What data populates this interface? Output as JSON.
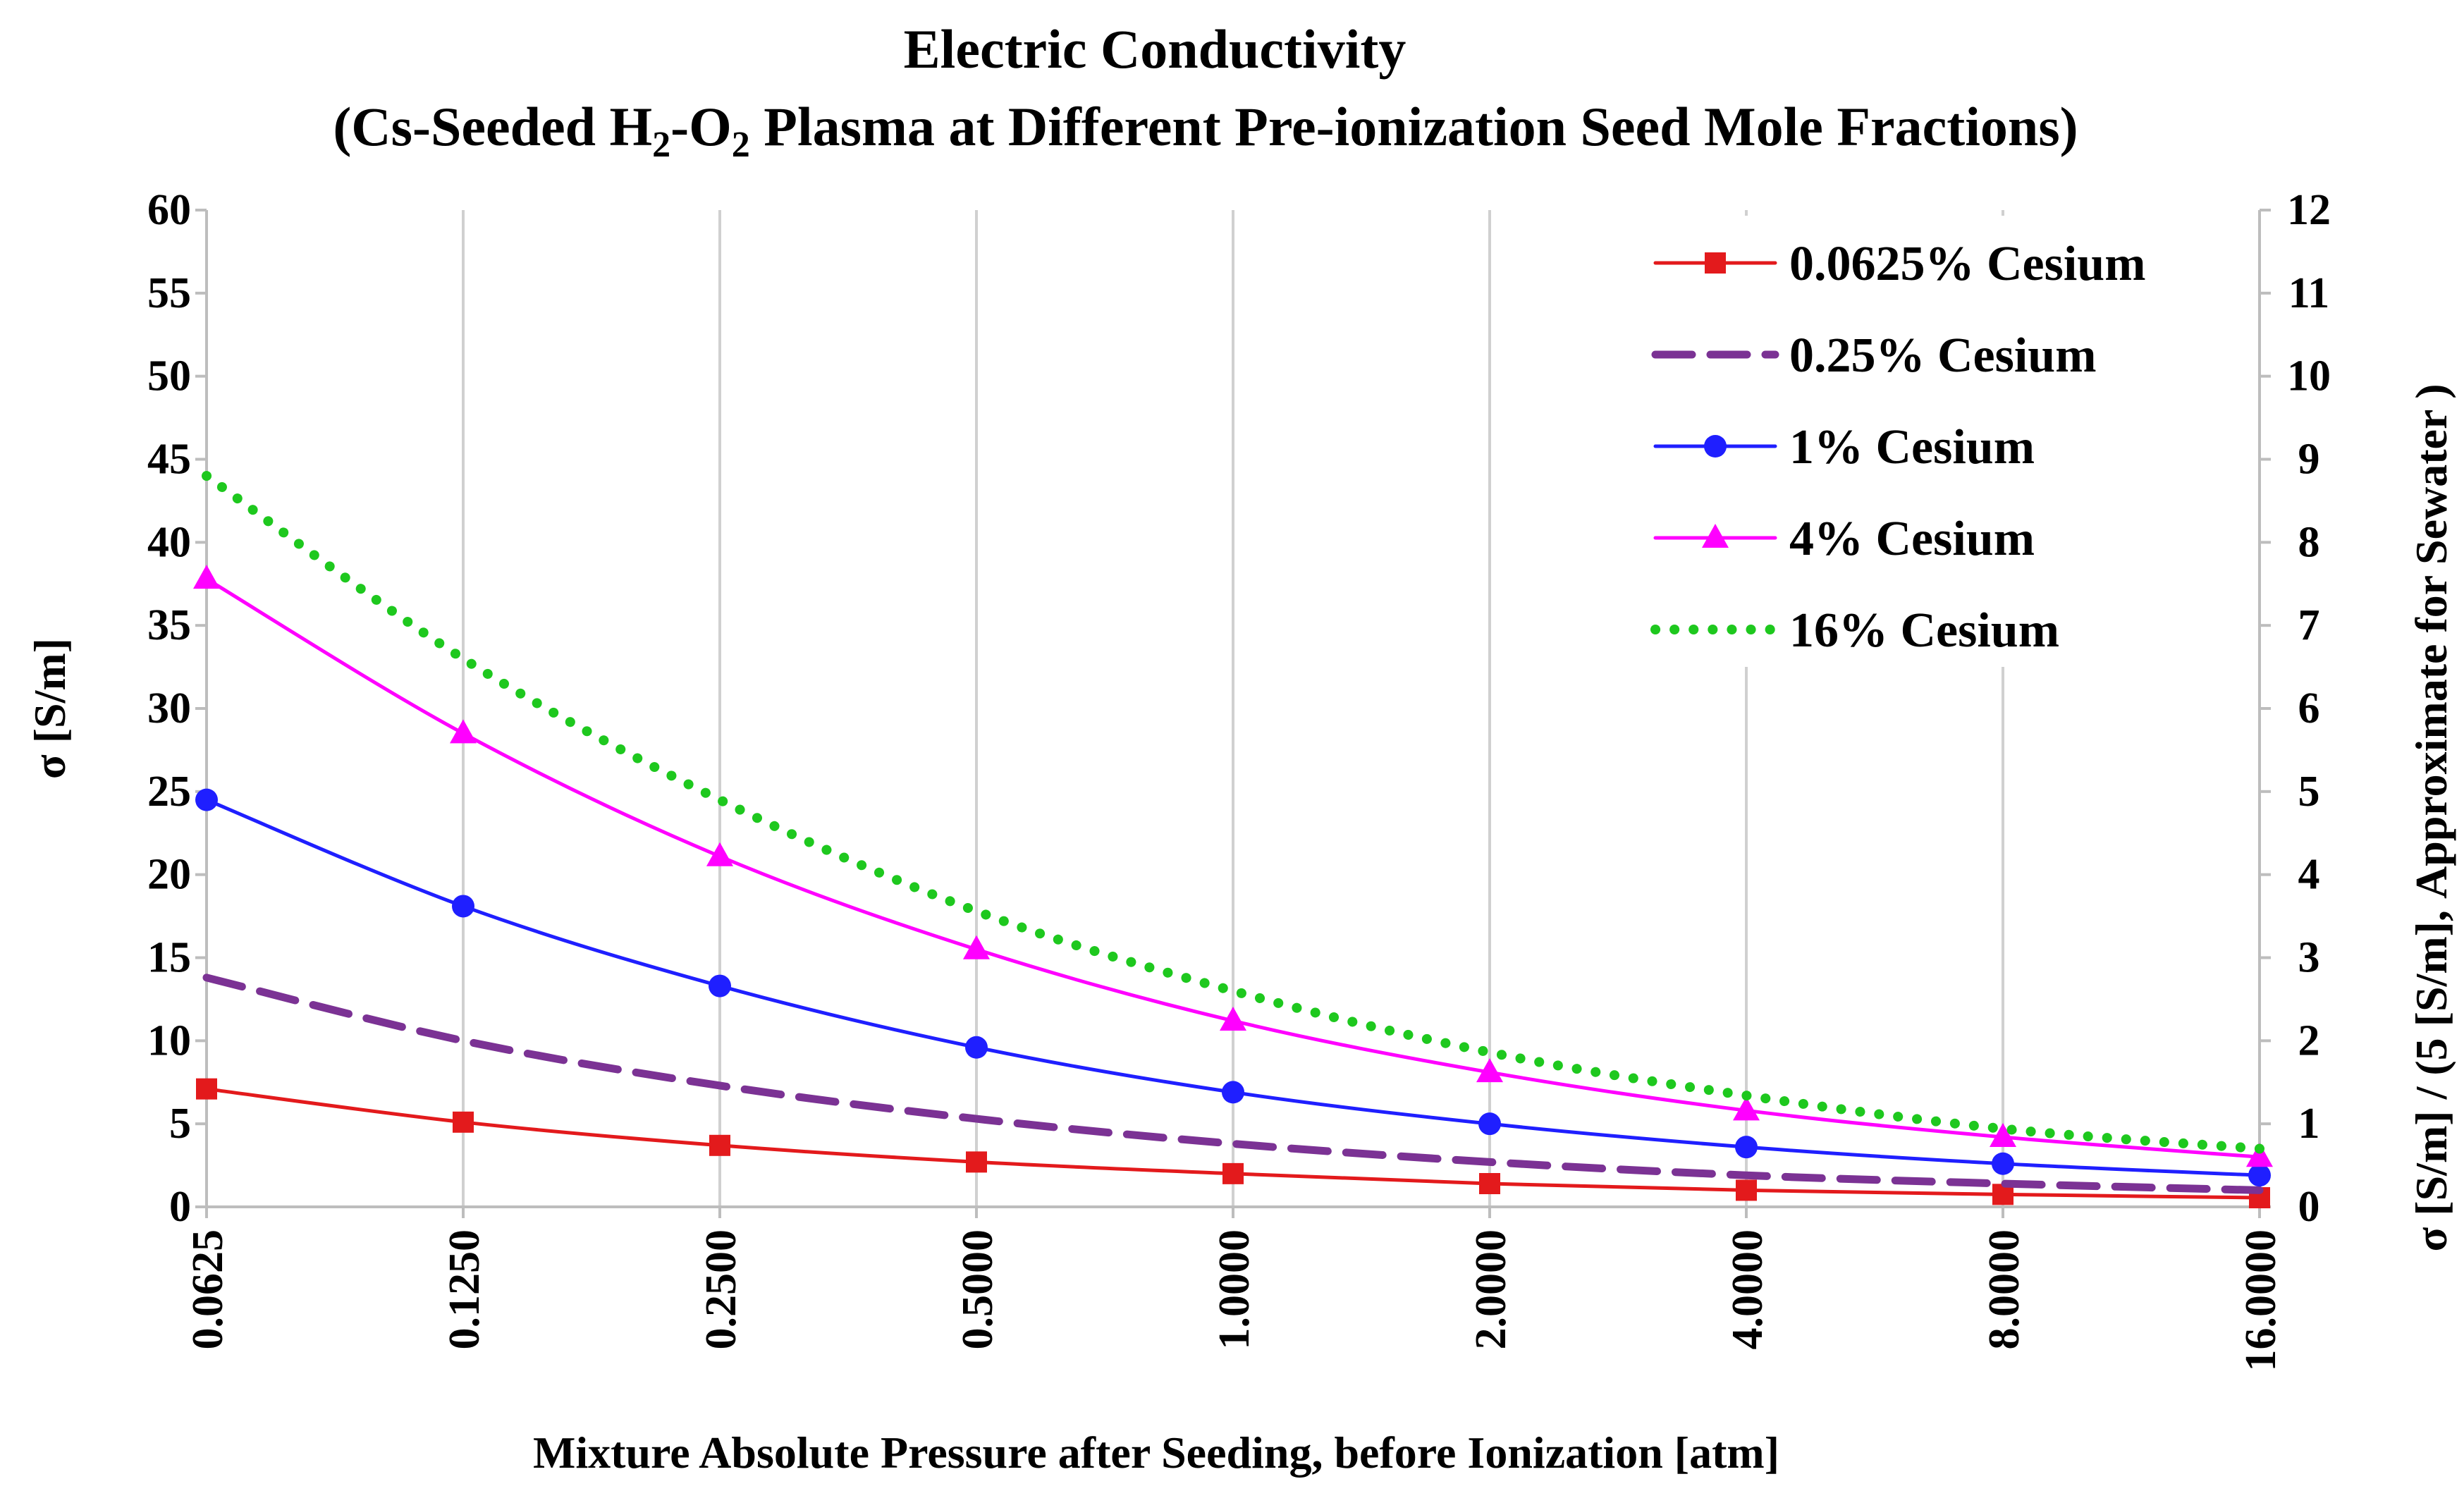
{
  "chart_data": {
    "type": "line",
    "title": "Electric Conductivity",
    "subtitle": {
      "pre": "(Cs-Seeded H",
      "sub1": "2",
      "mid": "-O",
      "sub2": "2",
      "post": " Plasma at Different Pre-ionization Seed Mole Fractions)"
    },
    "xlabel": "Mixture Absolute Pressure after Seeding, before Ionization [atm]",
    "ylabel": "σ [S/m]",
    "y2label": "σ [S/m] / (5 [S/m], Approximate for Sewater )",
    "x_scale": "log2",
    "categories": [
      "0.0625",
      "0.1250",
      "0.2500",
      "0.5000",
      "1.0000",
      "2.0000",
      "4.0000",
      "8.0000",
      "16.0000"
    ],
    "ylim": [
      0,
      60
    ],
    "y_ticks": [
      0,
      5,
      10,
      15,
      20,
      25,
      30,
      35,
      40,
      45,
      50,
      55,
      60
    ],
    "y2lim": [
      0,
      12
    ],
    "y2_ticks": [
      0,
      1,
      2,
      3,
      4,
      5,
      6,
      7,
      8,
      9,
      10,
      11,
      12
    ],
    "grid": "vertical",
    "legend_position": "top-right",
    "series": [
      {
        "name": "0.0625% Cesium",
        "style": "solid",
        "marker": "square",
        "color": "#e31a1c",
        "values": [
          7.1,
          5.1,
          3.7,
          2.7,
          2.0,
          1.4,
          1.0,
          0.75,
          0.55
        ]
      },
      {
        "name": "0.25% Cesium",
        "style": "dashed",
        "marker": "none",
        "color": "#7b3294",
        "values": [
          13.8,
          10.0,
          7.3,
          5.3,
          3.8,
          2.7,
          1.9,
          1.4,
          1.0
        ]
      },
      {
        "name": "1% Cesium",
        "style": "solid",
        "marker": "circle",
        "color": "#1f1fff",
        "values": [
          24.5,
          18.1,
          13.3,
          9.6,
          6.9,
          5.0,
          3.6,
          2.6,
          1.9
        ]
      },
      {
        "name": "4% Cesium",
        "style": "solid",
        "marker": "triangle",
        "color": "#ff00ff",
        "values": [
          37.8,
          28.5,
          21.1,
          15.5,
          11.2,
          8.1,
          5.8,
          4.2,
          3.0
        ]
      },
      {
        "name": "16% Cesium",
        "style": "dotted",
        "marker": "none",
        "color": "#1ec81e",
        "values": [
          44.0,
          33.0,
          24.5,
          17.8,
          13.0,
          9.3,
          6.7,
          4.7,
          3.5
        ]
      }
    ]
  }
}
